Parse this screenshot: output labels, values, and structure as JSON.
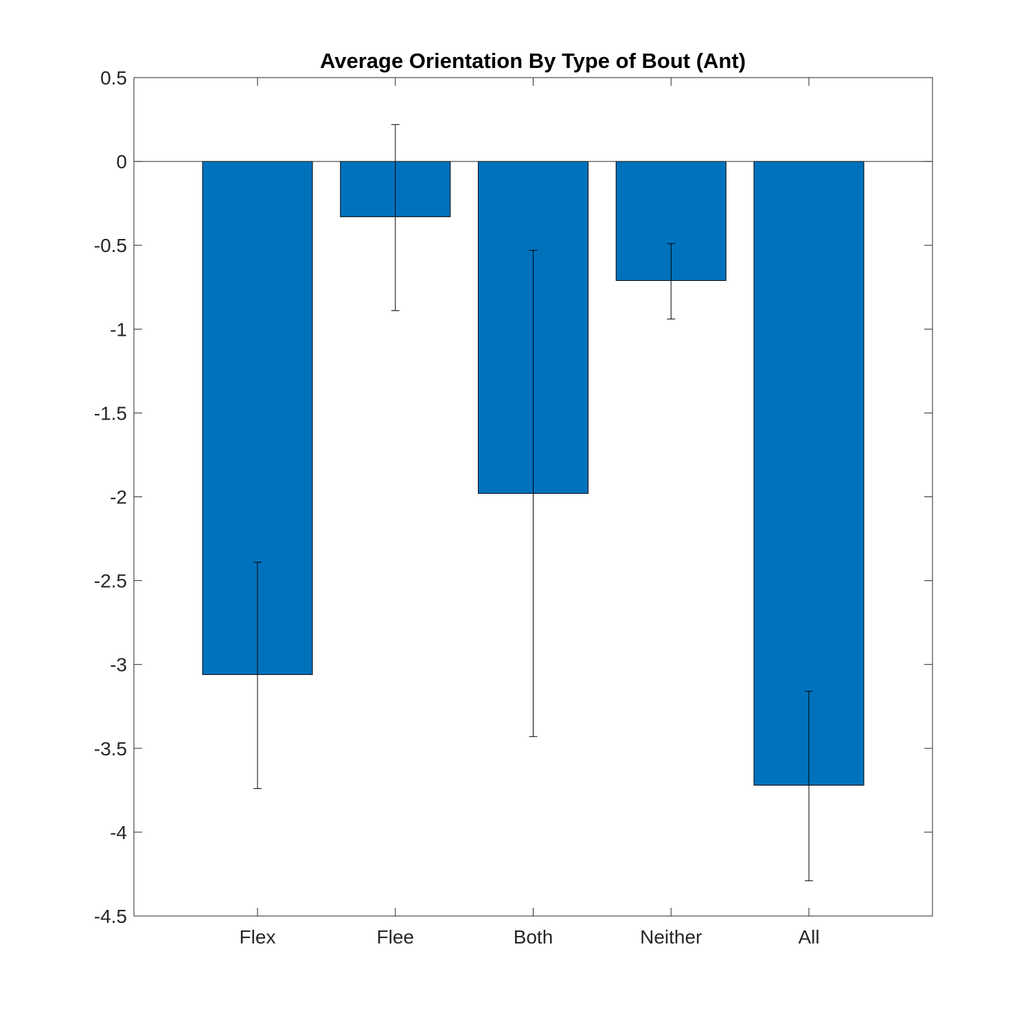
{
  "chart_data": {
    "type": "bar",
    "title": "Average Orientation By Type of Bout (Ant)",
    "xlabel": "",
    "ylabel": "",
    "categories": [
      "Flex",
      "Flee",
      "Both",
      "Neither",
      "All"
    ],
    "values": [
      -3.06,
      -0.33,
      -1.98,
      -0.71,
      -3.72
    ],
    "error_low": [
      -3.74,
      -0.89,
      -3.43,
      -0.94,
      -4.29
    ],
    "error_high": [
      -2.39,
      0.22,
      -0.53,
      -0.49,
      -3.16
    ],
    "ylim": [
      -4.5,
      0.5
    ],
    "yticks": [
      "0.5",
      "0",
      "-0.5",
      "-1",
      "-1.5",
      "-2",
      "-2.5",
      "-3",
      "-3.5",
      "-4",
      "-4.5"
    ],
    "ytick_values": [
      0.5,
      0,
      -0.5,
      -1,
      -1.5,
      -2,
      -2.5,
      -3,
      -3.5,
      -4,
      -4.5
    ],
    "bar_color": "#0072BD",
    "grid": false,
    "legend": "none"
  }
}
